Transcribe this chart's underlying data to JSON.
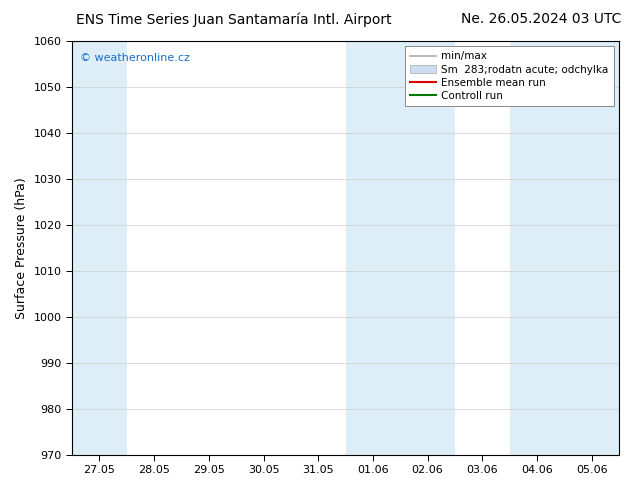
{
  "title_left": "ENS Time Series Juan Santamaría Intl. Airport",
  "title_right": "Ne. 26.05.2024 03 UTC",
  "ylabel": "Surface Pressure (hPa)",
  "ylim": [
    970,
    1060
  ],
  "yticks": [
    970,
    980,
    990,
    1000,
    1010,
    1020,
    1030,
    1040,
    1050,
    1060
  ],
  "x_labels": [
    "27.05",
    "28.05",
    "29.05",
    "30.05",
    "31.05",
    "01.06",
    "02.06",
    "03.06",
    "04.06",
    "05.06"
  ],
  "x_positions": [
    0,
    1,
    2,
    3,
    4,
    5,
    6,
    7,
    8,
    9
  ],
  "shaded_bands": [
    {
      "xmin": -0.5,
      "xmax": 0.5,
      "color": "#ddeef8"
    },
    {
      "xmin": 4.5,
      "xmax": 6.5,
      "color": "#ddeef8"
    },
    {
      "xmin": 7.5,
      "xmax": 9.5,
      "color": "#ddeef8"
    }
  ],
  "watermark": "© weatheronline.cz",
  "watermark_color": "#1a6fc4",
  "legend_entries": [
    {
      "label": "min/max",
      "color": "#aaaaaa",
      "lw": 1.2,
      "type": "line"
    },
    {
      "label": "Sm  283;rodatn acute; odchylka",
      "color": "#ccddf0",
      "lw": 8,
      "type": "patch"
    },
    {
      "label": "Ensemble mean run",
      "color": "#dd0000",
      "lw": 1.5,
      "type": "line"
    },
    {
      "label": "Controll run",
      "color": "#007700",
      "lw": 1.5,
      "type": "line"
    }
  ],
  "background_color": "#ffffff",
  "plot_bg_color": "#ffffff",
  "title_fontsize": 10,
  "axis_label_fontsize": 9,
  "tick_fontsize": 8,
  "legend_fontsize": 7.5
}
